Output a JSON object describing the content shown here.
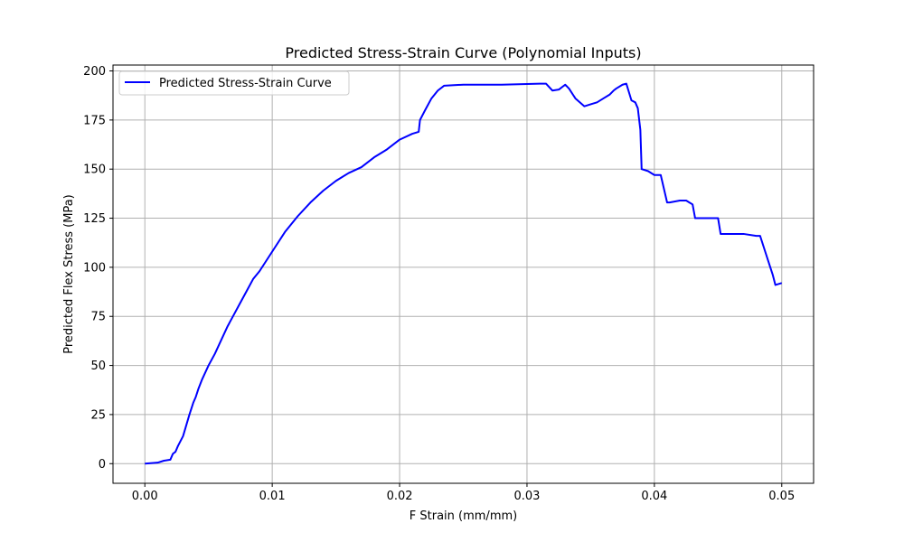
{
  "chart_data": {
    "type": "line",
    "title": "Predicted Stress-Strain Curve (Polynomial Inputs)",
    "xlabel": "F Strain (mm/mm)",
    "ylabel": "Predicted Flex Stress (MPa)",
    "xlim": [
      -0.0025,
      0.0525
    ],
    "ylim": [
      -10,
      203
    ],
    "xticks": [
      0.0,
      0.01,
      0.02,
      0.03,
      0.04,
      0.05
    ],
    "xtick_labels": [
      "0.00",
      "0.01",
      "0.02",
      "0.03",
      "0.04",
      "0.05"
    ],
    "yticks": [
      0,
      25,
      50,
      75,
      100,
      125,
      150,
      175,
      200
    ],
    "ytick_labels": [
      "0",
      "25",
      "50",
      "75",
      "100",
      "125",
      "150",
      "175",
      "200"
    ],
    "grid": true,
    "legend_position": "top-left",
    "series": [
      {
        "name": "Predicted Stress-Strain Curve",
        "color": "#0000ff",
        "x": [
          0.0,
          0.001,
          0.0015,
          0.002,
          0.0022,
          0.0024,
          0.0026,
          0.003,
          0.0035,
          0.0038,
          0.004,
          0.0042,
          0.0045,
          0.005,
          0.0055,
          0.006,
          0.0065,
          0.007,
          0.0075,
          0.008,
          0.0085,
          0.009,
          0.0095,
          0.01,
          0.011,
          0.012,
          0.013,
          0.014,
          0.015,
          0.016,
          0.017,
          0.018,
          0.019,
          0.02,
          0.021,
          0.0215,
          0.0216,
          0.022,
          0.0225,
          0.023,
          0.0235,
          0.025,
          0.028,
          0.031,
          0.0315,
          0.032,
          0.0325,
          0.033,
          0.0333,
          0.0338,
          0.0345,
          0.035,
          0.0355,
          0.036,
          0.0365,
          0.0368,
          0.037,
          0.0375,
          0.0378,
          0.0382,
          0.0385,
          0.0387,
          0.0389,
          0.039,
          0.0395,
          0.04,
          0.0405,
          0.041,
          0.0412,
          0.042,
          0.0425,
          0.043,
          0.0432,
          0.044,
          0.045,
          0.0452,
          0.0465,
          0.047,
          0.048,
          0.0483,
          0.0487,
          0.049,
          0.0493,
          0.0495,
          0.05
        ],
        "y": [
          0,
          0.5,
          1.5,
          2,
          5,
          6,
          9,
          14,
          25,
          31,
          34,
          38,
          43,
          50,
          56,
          63,
          70,
          76,
          82,
          88,
          94,
          98,
          103,
          108,
          118,
          126,
          133,
          139,
          144,
          148,
          151,
          156,
          160,
          165,
          168,
          169,
          175,
          180,
          186,
          190,
          192.5,
          193,
          193,
          193.5,
          193.5,
          190,
          190.5,
          193,
          191,
          186,
          182,
          183,
          184,
          186,
          188,
          190,
          191,
          193,
          193.5,
          185,
          184,
          181,
          170,
          150,
          149,
          147,
          147,
          133,
          133,
          134,
          134,
          132,
          125,
          125,
          125,
          117,
          117,
          117,
          116,
          116,
          108,
          102,
          96,
          91,
          92
        ]
      }
    ]
  }
}
